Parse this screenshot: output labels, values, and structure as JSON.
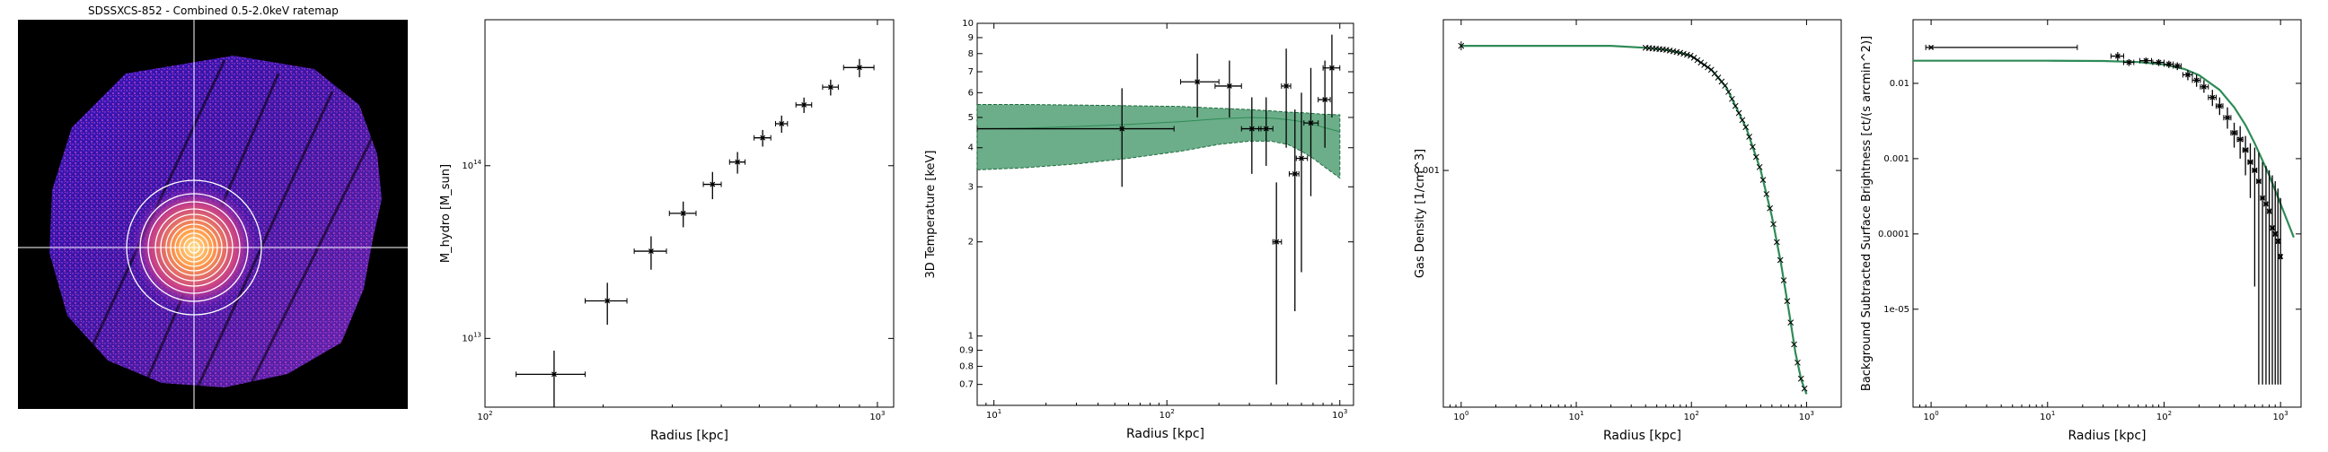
{
  "ratemap": {
    "title": "SDSSXCS-852 - Combined 0.5-2.0keV ratemap"
  },
  "colors": {
    "data": "#000000",
    "model": "#2e8b57",
    "band_fill": "#2e8b57"
  },
  "chart_data": [
    {
      "type": "scatter",
      "xlabel": "Radius [kpc]",
      "ylabel": "M_hydro [M_sun]",
      "xscale": "log",
      "yscale": "log",
      "xlim": [
        100,
        1100
      ],
      "ylim": [
        4000000000000.0,
        700000000000000.0
      ],
      "xticks": [
        {
          "v": 100,
          "t": "10^2"
        },
        {
          "v": 1000,
          "t": "10^3"
        }
      ],
      "yticks": [
        {
          "v": 10000000000000.0,
          "t": "10^13"
        },
        {
          "v": 100000000000000.0,
          "t": "10^14"
        }
      ],
      "x": [
        150,
        205,
        265,
        320,
        380,
        440,
        510,
        570,
        650,
        760,
        900
      ],
      "xerr": [
        30,
        25,
        25,
        25,
        20,
        20,
        25,
        20,
        30,
        35,
        80
      ],
      "y": [
        6200000000000.0,
        16500000000000.0,
        32000000000000.0,
        53000000000000.0,
        78000000000000.0,
        105000000000000.0,
        145000000000000.0,
        175000000000000.0,
        225000000000000.0,
        285000000000000.0,
        370000000000000.0
      ],
      "yerr": [
        2300000000000.0,
        4500000000000.0,
        7000000000000.0,
        9000000000000.0,
        14000000000000.0,
        15000000000000.0,
        16000000000000.0,
        20000000000000.0,
        23000000000000.0,
        30000000000000.0,
        45000000000000.0
      ]
    },
    {
      "type": "scatter",
      "xlabel": "Radius [kpc]",
      "ylabel": "3D Temperature [keV]",
      "xscale": "log",
      "yscale": "log",
      "xlim": [
        8,
        1200
      ],
      "ylim": [
        0.6,
        10
      ],
      "xticks": [
        {
          "v": 10,
          "t": "10^1"
        },
        {
          "v": 100,
          "t": "10^2"
        },
        {
          "v": 1000,
          "t": "10^3"
        }
      ],
      "yticks": [
        {
          "v": 0.7,
          "t": "0.7"
        },
        {
          "v": 0.8,
          "t": "0.8"
        },
        {
          "v": 0.9,
          "t": "0.9"
        },
        {
          "v": 1,
          "t": "1"
        },
        {
          "v": 2,
          "t": "2"
        },
        {
          "v": 3,
          "t": "3"
        },
        {
          "v": 4,
          "t": "4"
        },
        {
          "v": 5,
          "t": "5"
        },
        {
          "v": 6,
          "t": "6"
        },
        {
          "v": 7,
          "t": "7"
        },
        {
          "v": 8,
          "t": "8"
        },
        {
          "v": 9,
          "t": "9"
        },
        {
          "v": 10,
          "t": "10"
        }
      ],
      "x": [
        55,
        150,
        230,
        310,
        375,
        430,
        490,
        550,
        600,
        680,
        820,
        900
      ],
      "xlo": [
        8,
        120,
        190,
        270,
        340,
        410,
        460,
        510,
        560,
        620,
        750,
        800
      ],
      "xhi": [
        110,
        200,
        270,
        350,
        410,
        460,
        520,
        580,
        650,
        750,
        880,
        1000
      ],
      "y": [
        4.6,
        6.5,
        6.3,
        4.6,
        4.6,
        2.0,
        6.3,
        3.3,
        3.7,
        4.8,
        5.7,
        7.2
      ],
      "ylo": [
        3.0,
        5.0,
        5.0,
        3.3,
        3.5,
        0.7,
        4.0,
        1.2,
        1.6,
        2.8,
        4.0,
        5.0
      ],
      "yhi": [
        6.2,
        8.0,
        7.6,
        5.8,
        5.8,
        3.1,
        8.3,
        5.3,
        6.0,
        7.2,
        7.6,
        9.2
      ],
      "model": {
        "x": [
          8,
          15,
          30,
          60,
          120,
          200,
          300,
          400,
          500,
          600,
          700,
          800,
          1000
        ],
        "y": [
          4.6,
          4.62,
          4.68,
          4.75,
          4.85,
          4.95,
          5.0,
          4.98,
          4.92,
          4.85,
          4.75,
          4.65,
          4.5
        ],
        "lo": [
          3.4,
          3.45,
          3.55,
          3.7,
          3.9,
          4.1,
          4.2,
          4.2,
          4.1,
          3.9,
          3.7,
          3.5,
          3.2
        ],
        "hi": [
          5.5,
          5.5,
          5.48,
          5.45,
          5.42,
          5.35,
          5.3,
          5.25,
          5.2,
          5.18,
          5.15,
          5.12,
          5.1
        ]
      }
    },
    {
      "type": "line",
      "xlabel": "Radius [kpc]",
      "ylabel": "Gas Density [1/cm^3]",
      "xscale": "log",
      "yscale": "log",
      "xlim": [
        0.7,
        2000
      ],
      "ylim": [
        6e-05,
        0.006
      ],
      "xticks": [
        {
          "v": 1,
          "t": "10^0"
        },
        {
          "v": 10,
          "t": "10^1"
        },
        {
          "v": 100,
          "t": "10^2"
        },
        {
          "v": 1000,
          "t": "10^3"
        }
      ],
      "yticks": [
        {
          "v": 0.001,
          "t": "0.001"
        }
      ],
      "model": {
        "x": [
          1,
          5,
          10,
          20,
          40,
          60,
          80,
          100,
          150,
          200,
          300,
          400,
          500,
          600,
          700,
          800,
          900,
          1000
        ],
        "y": [
          0.0044,
          0.0044,
          0.0044,
          0.0044,
          0.0043,
          0.0042,
          0.00405,
          0.0039,
          0.0033,
          0.0027,
          0.00165,
          0.001,
          0.00058,
          0.00033,
          0.00019,
          0.000115,
          8.3e-05,
          7e-05
        ]
      }
    },
    {
      "type": "scatter",
      "xlabel": "Radius [kpc]",
      "ylabel": "Background Subtracted Surface Brightness [ct/(s arcmin^2)]",
      "xscale": "log",
      "yscale": "log",
      "xlim": [
        0.7,
        1500
      ],
      "ylim": [
        5e-07,
        0.07
      ],
      "xticks": [
        {
          "v": 1,
          "t": "10^0"
        },
        {
          "v": 10,
          "t": "10^1"
        },
        {
          "v": 100,
          "t": "10^2"
        },
        {
          "v": 1000,
          "t": "10^3"
        }
      ],
      "yticks": [
        {
          "v": 1e-05,
          "t": "1e-05"
        },
        {
          "v": 0.0001,
          "t": "0.0001"
        },
        {
          "v": 0.001,
          "t": "0.001"
        },
        {
          "v": 0.01,
          "t": "0.01"
        }
      ],
      "x": [
        1,
        40,
        50,
        70,
        90,
        110,
        130,
        160,
        190,
        220,
        260,
        300,
        350,
        400,
        450,
        500,
        550,
        600,
        650,
        700,
        750,
        800,
        850,
        900,
        950,
        1000
      ],
      "xlo": [
        0.9,
        35,
        45,
        62,
        80,
        100,
        120,
        145,
        175,
        205,
        240,
        280,
        325,
        375,
        425,
        475,
        525,
        575,
        625,
        675,
        725,
        775,
        825,
        875,
        925,
        975
      ],
      "xhi": [
        18,
        45,
        55,
        78,
        100,
        120,
        140,
        175,
        205,
        240,
        280,
        320,
        375,
        425,
        475,
        525,
        575,
        625,
        675,
        725,
        775,
        825,
        875,
        925,
        975,
        1025
      ],
      "y": [
        0.03,
        0.023,
        0.019,
        0.02,
        0.019,
        0.018,
        0.017,
        0.013,
        0.011,
        0.009,
        0.0065,
        0.005,
        0.0035,
        0.0022,
        0.0018,
        0.0013,
        0.0009,
        0.0007,
        0.0005,
        0.0003,
        0.00025,
        0.0002,
        0.00012,
        0.0001,
        8e-05,
        5e-05
      ],
      "ylo": [
        0.029,
        0.02,
        0.017,
        0.018,
        0.017,
        0.016,
        0.015,
        0.011,
        0.009,
        0.0075,
        0.005,
        0.0038,
        0.0025,
        0.0014,
        0.001,
        0.0006,
        0.0003,
        2e-05,
        1e-06,
        1e-06,
        1e-06,
        1e-06,
        1e-06,
        1e-06,
        1e-06,
        1e-06
      ],
      "yhi": [
        0.031,
        0.026,
        0.021,
        0.022,
        0.021,
        0.02,
        0.019,
        0.015,
        0.013,
        0.011,
        0.0082,
        0.0065,
        0.0048,
        0.003,
        0.0027,
        0.002,
        0.0016,
        0.0014,
        0.0012,
        0.0009,
        0.0008,
        0.0007,
        0.0006,
        0.0005,
        0.0004,
        0.0003
      ],
      "model": {
        "x": [
          0.7,
          1,
          10,
          30,
          60,
          100,
          150,
          200,
          300,
          400,
          500,
          600,
          800,
          1000,
          1300
        ],
        "y": [
          0.02,
          0.02,
          0.02,
          0.0198,
          0.0192,
          0.0178,
          0.0155,
          0.0128,
          0.0082,
          0.0048,
          0.0028,
          0.0016,
          0.0006,
          0.00025,
          9e-05
        ]
      }
    }
  ]
}
